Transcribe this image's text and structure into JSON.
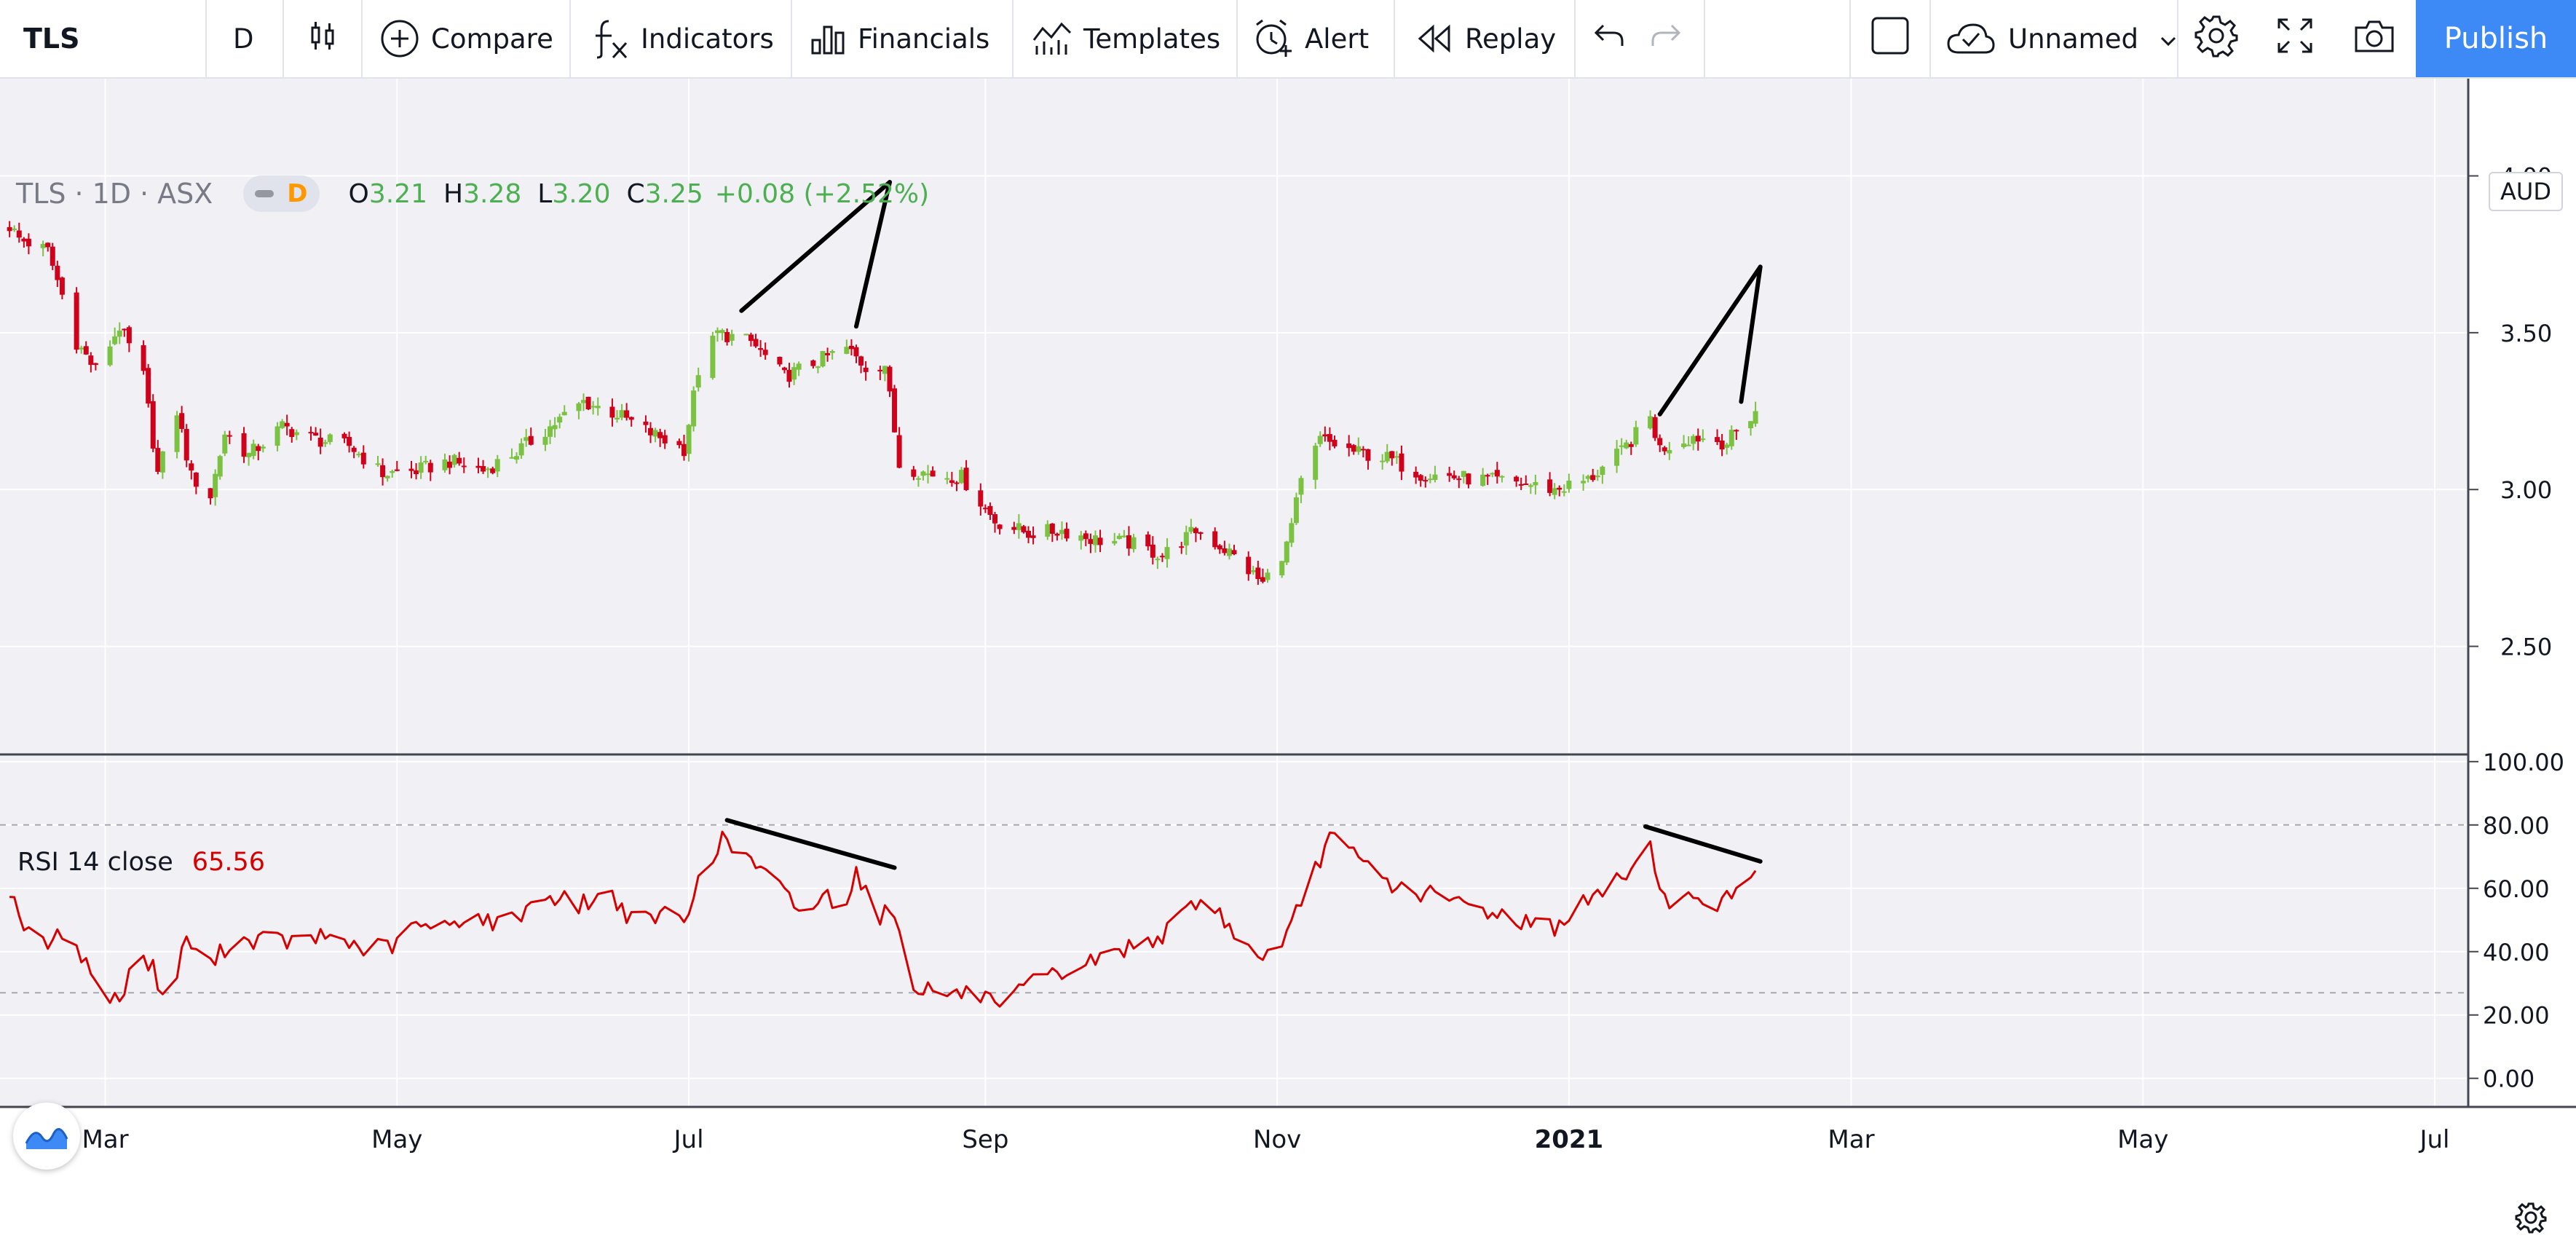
{
  "toolbar": {
    "symbol": "TLS",
    "interval": "D",
    "compare_label": "Compare",
    "indicators_label": "Indicators",
    "financials_label": "Financials",
    "templates_label": "Templates",
    "alert_label": "Alert",
    "replay_label": "Replay",
    "layout_name": "Unnamed",
    "publish_label": "Publish"
  },
  "legend": {
    "symbol": "TLS",
    "interval": "1D",
    "exchange": "ASX",
    "badge": "D",
    "open_key": "O",
    "open": "3.21",
    "high_key": "H",
    "high": "3.28",
    "low_key": "L",
    "low": "3.20",
    "close_key": "C",
    "close": "3.25",
    "change": "+0.08 (+2.52%)"
  },
  "currency_badge": "AUD",
  "rsi_legend": {
    "label": "RSI 14 close",
    "value": "65.56"
  },
  "colors": {
    "up": "#7cc242",
    "down": "#d0021b",
    "rsi_line": "#d50000",
    "accent": "#3d8af7",
    "background": "#f0f0f5",
    "grid": "#ffffff"
  },
  "icons": [
    "candles-icon",
    "compare-plus-icon",
    "indicators-fx-icon",
    "financials-icon",
    "templates-icon",
    "alert-clock-icon",
    "replay-icon",
    "undo-icon",
    "redo-icon",
    "select-square-icon",
    "cloud-save-icon",
    "chevron-down-icon",
    "settings-gear-icon",
    "fullscreen-icon",
    "camera-icon",
    "tradingview-logo-icon"
  ],
  "chart_data": [
    {
      "type": "candlestick",
      "title": "TLS · 1D · ASX",
      "y_ticks": [
        "4.00",
        "3.50",
        "3.00",
        "2.50"
      ],
      "ylim": [
        2.16,
        4.31
      ],
      "x_ticks": [
        "Mar",
        "May",
        "Jul",
        "Sep",
        "Nov",
        "2021",
        "Mar",
        "May",
        "Jul"
      ],
      "x_tick_dates": [
        "2020-03-01",
        "2020-05-01",
        "2020-07-01",
        "2020-09-01",
        "2020-11-01",
        "2021-01-01",
        "2021-03-01",
        "2021-05-01",
        "2021-07-01"
      ],
      "xlim": [
        "2020-02-08",
        "2021-07-08"
      ],
      "anchors": [
        [
          "2020-02-08",
          3.88
        ],
        [
          "2020-02-12",
          3.8
        ],
        [
          "2020-02-18",
          3.76
        ],
        [
          "2020-02-21",
          3.62
        ],
        [
          "2020-02-24",
          3.47
        ],
        [
          "2020-02-28",
          3.38
        ],
        [
          "2020-03-04",
          3.52
        ],
        [
          "2020-03-09",
          3.36
        ],
        [
          "2020-03-12",
          3.05
        ],
        [
          "2020-03-16",
          3.25
        ],
        [
          "2020-03-19",
          3.04
        ],
        [
          "2020-03-23",
          2.98
        ],
        [
          "2020-03-26",
          3.18
        ],
        [
          "2020-03-31",
          3.11
        ],
        [
          "2020-04-07",
          3.2
        ],
        [
          "2020-04-14",
          3.16
        ],
        [
          "2020-04-21",
          3.14
        ],
        [
          "2020-04-28",
          3.05
        ],
        [
          "2020-05-05",
          3.06
        ],
        [
          "2020-05-12",
          3.09
        ],
        [
          "2020-05-19",
          3.06
        ],
        [
          "2020-05-26",
          3.12
        ],
        [
          "2020-06-02",
          3.2
        ],
        [
          "2020-06-09",
          3.28
        ],
        [
          "2020-06-16",
          3.24
        ],
        [
          "2020-06-23",
          3.18
        ],
        [
          "2020-06-30",
          3.13
        ],
        [
          "2020-07-03",
          3.38
        ],
        [
          "2020-07-07",
          3.5
        ],
        [
          "2020-07-14",
          3.47
        ],
        [
          "2020-07-21",
          3.36
        ],
        [
          "2020-07-28",
          3.41
        ],
        [
          "2020-08-03",
          3.45
        ],
        [
          "2020-08-07",
          3.39
        ],
        [
          "2020-08-11",
          3.4
        ],
        [
          "2020-08-14",
          3.08
        ],
        [
          "2020-08-20",
          3.05
        ],
        [
          "2020-08-27",
          3.04
        ],
        [
          "2020-09-03",
          2.9
        ],
        [
          "2020-09-10",
          2.86
        ],
        [
          "2020-09-17",
          2.87
        ],
        [
          "2020-09-24",
          2.84
        ],
        [
          "2020-10-01",
          2.83
        ],
        [
          "2020-10-08",
          2.79
        ],
        [
          "2020-10-15",
          2.87
        ],
        [
          "2020-10-22",
          2.8
        ],
        [
          "2020-10-29",
          2.7
        ],
        [
          "2020-11-03",
          2.82
        ],
        [
          "2020-11-06",
          3.02
        ],
        [
          "2020-11-10",
          3.16
        ],
        [
          "2020-11-17",
          3.12
        ],
        [
          "2020-11-24",
          3.1
        ],
        [
          "2020-12-01",
          3.05
        ],
        [
          "2020-12-08",
          3.04
        ],
        [
          "2020-12-15",
          3.03
        ],
        [
          "2020-12-22",
          3.02
        ],
        [
          "2020-12-29",
          3.0
        ],
        [
          "2021-01-05",
          3.03
        ],
        [
          "2021-01-12",
          3.12
        ],
        [
          "2021-01-18",
          3.23
        ],
        [
          "2021-01-20",
          3.13
        ],
        [
          "2021-01-27",
          3.17
        ],
        [
          "2021-02-03",
          3.15
        ],
        [
          "2021-02-09",
          3.25
        ]
      ],
      "last_candle": {
        "date": "2021-02-09",
        "open": 3.21,
        "high": 3.28,
        "low": 3.2,
        "close": 3.25
      },
      "annotation_lines": [
        [
          [
            "2020-07-12",
            3.57
          ],
          [
            "2020-08-12",
            3.98
          ]
        ],
        [
          [
            "2020-08-12",
            3.98
          ],
          [
            "2020-08-05",
            3.52
          ]
        ],
        [
          [
            "2021-01-20",
            3.24
          ],
          [
            "2021-02-10",
            3.71
          ]
        ],
        [
          [
            "2021-02-10",
            3.71
          ],
          [
            "2021-02-06",
            3.28
          ]
        ]
      ]
    },
    {
      "type": "line",
      "title": "RSI 14 close",
      "series": [
        {
          "name": "RSI 14 close",
          "last_value": 65.56
        }
      ],
      "y_ticks": [
        "100.00",
        "80.00",
        "60.00",
        "40.00",
        "20.00",
        "0.00"
      ],
      "ylim": [
        -8.8,
        101.8
      ],
      "levels": [
        80,
        27
      ],
      "anchors": [
        [
          "2020-02-08",
          52
        ],
        [
          "2020-02-10",
          60
        ],
        [
          "2020-02-14",
          45
        ],
        [
          "2020-02-19",
          42
        ],
        [
          "2020-02-22",
          49
        ],
        [
          "2020-02-26",
          36
        ],
        [
          "2020-03-01",
          26
        ],
        [
          "2020-03-04",
          24
        ],
        [
          "2020-03-07",
          40
        ],
        [
          "2020-03-11",
          35
        ],
        [
          "2020-03-14",
          21
        ],
        [
          "2020-03-18",
          45
        ],
        [
          "2020-03-22",
          34
        ],
        [
          "2020-03-27",
          43
        ],
        [
          "2020-04-03",
          44
        ],
        [
          "2020-04-10",
          43
        ],
        [
          "2020-04-17",
          45
        ],
        [
          "2020-04-24",
          41
        ],
        [
          "2020-05-01",
          42
        ],
        [
          "2020-05-05",
          49
        ],
        [
          "2020-05-09",
          46
        ],
        [
          "2020-05-16",
          52
        ],
        [
          "2020-05-23",
          48
        ],
        [
          "2020-06-01",
          58
        ],
        [
          "2020-06-08",
          55
        ],
        [
          "2020-06-15",
          58
        ],
        [
          "2020-06-20",
          48
        ],
        [
          "2020-06-25",
          52
        ],
        [
          "2020-07-01",
          50
        ],
        [
          "2020-07-03",
          65
        ],
        [
          "2020-07-08",
          75
        ],
        [
          "2020-07-13",
          70
        ],
        [
          "2020-07-20",
          60
        ],
        [
          "2020-07-25",
          52
        ],
        [
          "2020-07-30",
          58
        ],
        [
          "2020-08-02",
          53
        ],
        [
          "2020-08-05",
          66
        ],
        [
          "2020-08-09",
          51
        ],
        [
          "2020-08-13",
          53
        ],
        [
          "2020-08-16",
          30
        ],
        [
          "2020-08-23",
          27
        ],
        [
          "2020-09-01",
          26
        ],
        [
          "2020-09-04",
          20
        ],
        [
          "2020-09-10",
          30
        ],
        [
          "2020-09-17",
          33
        ],
        [
          "2020-09-25",
          38
        ],
        [
          "2020-10-02",
          42
        ],
        [
          "2020-10-09",
          46
        ],
        [
          "2020-10-15",
          56
        ],
        [
          "2020-10-20",
          52
        ],
        [
          "2020-10-27",
          39
        ],
        [
          "2020-11-02",
          40
        ],
        [
          "2020-11-07",
          60
        ],
        [
          "2020-11-12",
          76
        ],
        [
          "2020-11-19",
          68
        ],
        [
          "2020-11-26",
          60
        ],
        [
          "2020-12-03",
          58
        ],
        [
          "2020-12-10",
          55
        ],
        [
          "2020-12-17",
          52
        ],
        [
          "2020-12-24",
          49
        ],
        [
          "2020-12-29",
          48
        ],
        [
          "2021-01-04",
          55
        ],
        [
          "2021-01-11",
          62
        ],
        [
          "2021-01-18",
          73
        ],
        [
          "2021-01-22",
          52
        ],
        [
          "2021-01-27",
          58
        ],
        [
          "2021-02-02",
          55
        ],
        [
          "2021-02-09",
          65.56
        ]
      ],
      "annotation_lines": [
        [
          [
            "2020-07-09",
            81.5
          ],
          [
            "2020-08-13",
            66.5
          ]
        ],
        [
          [
            "2021-01-17",
            79.5
          ],
          [
            "2021-02-10",
            68.5
          ]
        ]
      ]
    }
  ]
}
